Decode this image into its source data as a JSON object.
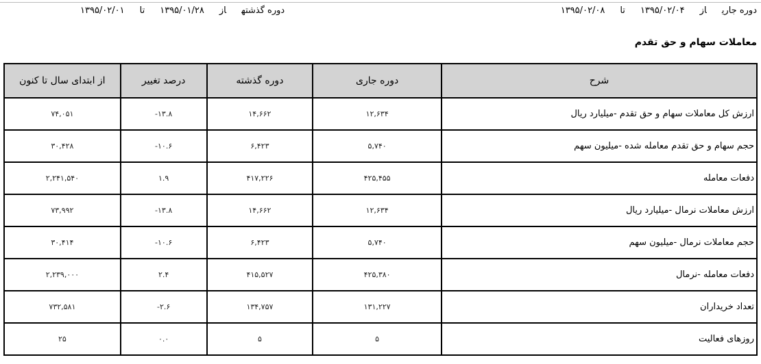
{
  "current_period": {
    "label": "دوره جاری",
    "from_label": "از",
    "from": "۱۳۹۵/۰۲/۰۴",
    "to_label": "تا",
    "to": "۱۳۹۵/۰۲/۰۸"
  },
  "previous_period": {
    "label": "دوره گذشته",
    "from_label": "از",
    "from": "۱۳۹۵/۰۱/۲۸",
    "to_label": "تا",
    "to": "۱۳۹۵/۰۲/۰۱"
  },
  "section_title": "معاملات سهام و حق تقدم",
  "table": {
    "headers": [
      "شرح",
      "دوره جاری",
      "دوره گذشته",
      "درصد تغییر",
      "از ابتدای سال تا کنون"
    ],
    "rows": [
      [
        "ارزش کل معاملات سهام و حق تقدم  -میلیارد ریال",
        "۱۲,۶۳۴",
        "۱۴,۶۶۲",
        "-۱۳.۸",
        "۷۴,۰۵۱"
      ],
      [
        "حجم سهام و حق تقدم معامله شده  -میلیون سهم",
        "۵,۷۴۰",
        "۶,۴۲۳",
        "-۱۰.۶",
        "۳۰,۴۲۸"
      ],
      [
        "دفعات معامله",
        "۴۲۵,۴۵۵",
        "۴۱۷,۲۲۶",
        "۱.۹",
        "۲,۲۴۱,۵۴۰"
      ],
      [
        "ارزش معاملات نرمال  -میلیارد ریال",
        "۱۲,۶۳۴",
        "۱۴,۶۶۲",
        "-۱۳.۸",
        "۷۳,۹۹۲"
      ],
      [
        "حجم معاملات نرمال  -میلیون سهم",
        "۵,۷۴۰",
        "۶,۴۲۳",
        "-۱۰.۶",
        "۳۰,۴۱۴"
      ],
      [
        "دفعات معامله  -نرمال",
        "۴۲۵,۳۸۰",
        "۴۱۵,۵۲۷",
        "۲.۴",
        "۲,۲۳۹,۰۰۰"
      ],
      [
        "تعداد خریداران",
        "۱۳۱,۲۲۷",
        "۱۳۴,۷۵۷",
        "-۲.۶",
        "۷۳۲,۵۸۱"
      ],
      [
        "روزهای فعالیت",
        "۵",
        "۵",
        "۰.۰",
        "۲۵"
      ]
    ]
  }
}
